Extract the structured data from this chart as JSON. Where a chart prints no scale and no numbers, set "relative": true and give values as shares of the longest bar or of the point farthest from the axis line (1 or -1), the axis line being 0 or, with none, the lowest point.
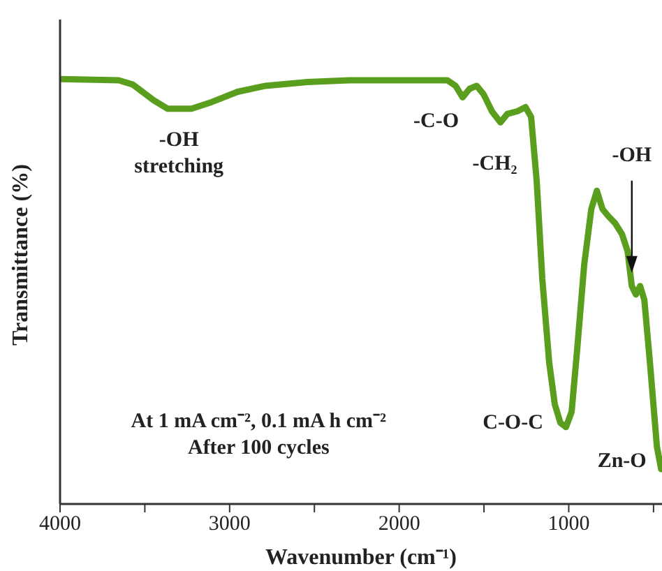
{
  "chart_data": {
    "type": "line",
    "relative": true,
    "xlabel": "Wavenumber (cm⁻¹)",
    "ylabel": "Transmittance (%)",
    "xlim": [
      4000,
      450
    ],
    "xticks": [
      4000,
      {
        "value": 3500,
        "label": null
      },
      3000,
      {
        "value": 2500,
        "label": null
      },
      2000,
      {
        "value": 1500,
        "label": null
      },
      1000,
      {
        "value": 500,
        "label": null
      }
    ],
    "grid": false,
    "legend": false,
    "marker": "none",
    "line_style": "solid",
    "series": [
      {
        "color": "#5a9e1e",
        "x": [
          4000,
          3654,
          3571,
          3448,
          3365,
          3225,
          3118,
          2953,
          2788,
          2541,
          2294,
          1716,
          1667,
          1626,
          1585,
          1543,
          1502,
          1453,
          1403,
          1362,
          1304,
          1255,
          1222,
          1189,
          1156,
          1115,
          1082,
          1049,
          1016,
          983,
          950,
          909,
          867,
          834,
          801,
          768,
          727,
          686,
          653,
          628,
          604,
          579,
          554,
          521,
          480,
          455
        ],
        "values": [
          1.0,
          0.997,
          0.987,
          0.95,
          0.93,
          0.93,
          0.944,
          0.97,
          0.984,
          0.993,
          0.997,
          0.997,
          0.984,
          0.957,
          0.977,
          0.984,
          0.964,
          0.924,
          0.898,
          0.918,
          0.924,
          0.934,
          0.911,
          0.76,
          0.53,
          0.332,
          0.234,
          0.191,
          0.181,
          0.217,
          0.365,
          0.5625,
          0.694,
          0.737,
          0.694,
          0.678,
          0.661,
          0.635,
          0.595,
          0.513,
          0.493,
          0.513,
          0.48,
          0.332,
          0.135,
          0.082
        ]
      }
    ],
    "annotations": [
      "-OH\nstretching",
      "-C-O",
      "-CH₂",
      "-OH",
      "C-O-C",
      "Zn-O",
      "At 1 mA cm⁻², 0.1 mA h cm⁻²\nAfter 100 cycles"
    ]
  }
}
